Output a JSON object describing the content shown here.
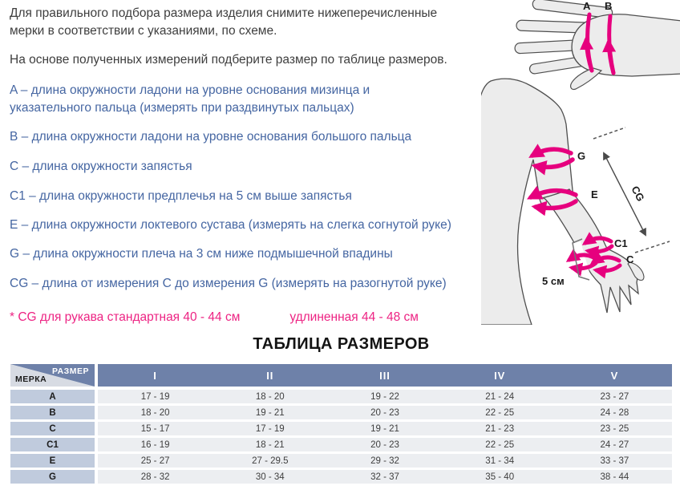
{
  "intro": {
    "paragraph1": "Для правильного подбора размера изделия снимите нижеперечисленные мерки в соответствии с указаниями, по схеме.",
    "paragraph2": "На основе полученных измерений подберите размер по таблице размеров."
  },
  "measurements": [
    "A – длина окружности ладони на уровне основания мизинца и указательного пальца (измерять при раздвинутых пальцах)",
    "B – длина окружности ладони на уровне основания большого пальца",
    "C – длина окружности запястья",
    "C1 – длина окружности предплечья на 5 см выше запястья",
    "E – длина окружности локтевого сустава (измерять на слегка согнутой руке)",
    "G – длина окружности плеча на 3 см ниже подмышечной впадины",
    "CG – длина от измерения C до измерения G (измерять на разогнутой руке)"
  ],
  "note": {
    "standard": "* CG для рукава  стандартная 40 - 44 см",
    "extended": "удлиненная 44 - 48 см"
  },
  "table": {
    "title": "ТАБЛИЦА РАЗМЕРОВ",
    "corner": {
      "top": "РАЗМЕР",
      "bottom": "МЕРКА"
    },
    "columns": [
      "I",
      "II",
      "III",
      "IV",
      "V"
    ],
    "rows": [
      {
        "label": "A",
        "values": [
          "17 - 19",
          "18 - 20",
          "19 - 22",
          "21 - 24",
          "23 - 27"
        ]
      },
      {
        "label": "B",
        "values": [
          "18 - 20",
          "19 - 21",
          "20 - 23",
          "22 - 25",
          "24 - 28"
        ]
      },
      {
        "label": "C",
        "values": [
          "15 - 17",
          "17 - 19",
          "19 - 21",
          "21 - 23",
          "23 - 25"
        ]
      },
      {
        "label": "C1",
        "values": [
          "16 - 19",
          "18 - 21",
          "20 - 23",
          "22 - 25",
          "24 - 27"
        ]
      },
      {
        "label": "E",
        "values": [
          "25 - 27",
          "27 - 29.5",
          "29 - 32",
          "31 - 34",
          "33 - 37"
        ]
      },
      {
        "label": "G",
        "values": [
          "28 - 32",
          "30 - 34",
          "32 - 37",
          "35 - 40",
          "38 - 44"
        ]
      }
    ]
  },
  "diagrams": {
    "hand": {
      "labels": {
        "a": "A",
        "b": "B"
      }
    },
    "arm": {
      "labels": {
        "g": "G",
        "e": "E",
        "c1": "C1",
        "c": "C",
        "cg": "CG",
        "five_cm": "5 см"
      }
    }
  },
  "colors": {
    "accent_pink": "#e6007e",
    "accent_blue": "#4566a2",
    "table_header": "#6e81a9",
    "row_label_bg": "#c0cbdd",
    "row_value_bg": "#eceef1"
  }
}
